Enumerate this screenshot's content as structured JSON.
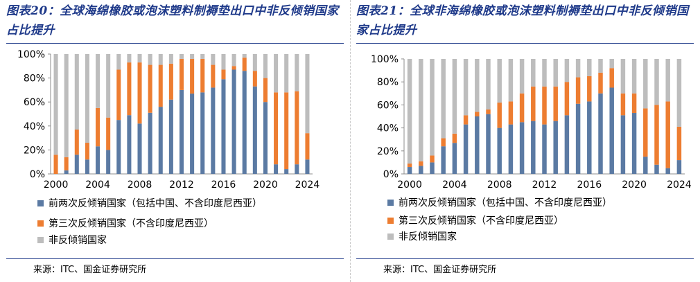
{
  "chart_data": [
    {
      "type": "bar",
      "stacked": true,
      "percent": true,
      "title": "图表20：全球海绵橡胶或泡沫塑料制褥垫出口中非反倾销国家占比提升",
      "source": "来源：ITC、国金证券研究所",
      "ylim": [
        0,
        100
      ],
      "yticks": [
        "0%",
        "20%",
        "40%",
        "60%",
        "80%",
        "100%"
      ],
      "xtick_labels": [
        "2000",
        "2004",
        "2008",
        "2012",
        "2016",
        "2020",
        "2024"
      ],
      "categories": [
        "2000",
        "2001",
        "2002",
        "2003",
        "2004",
        "2005",
        "2006",
        "2007",
        "2008",
        "2009",
        "2010",
        "2011",
        "2012",
        "2013",
        "2014",
        "2015",
        "2016",
        "2017",
        "2018",
        "2019",
        "2020",
        "2021",
        "2022",
        "2023",
        "2024"
      ],
      "legend_position": "bottom",
      "grid": false,
      "series": [
        {
          "name": "前两次反倾销国家（包括中国、不含印度尼西亚）",
          "color": "#5b7aa3",
          "values": [
            0,
            3,
            16,
            12,
            23,
            20,
            45,
            49,
            42,
            51,
            56,
            62,
            70,
            67,
            68,
            72,
            79,
            87,
            86,
            73,
            60,
            8,
            4,
            8,
            12
          ]
        },
        {
          "name": "第三次反倾销国家（不含印度尼西亚）",
          "color": "#ed7d31",
          "values": [
            16,
            11,
            21,
            14,
            32,
            27,
            42,
            44,
            51,
            40,
            35,
            30,
            26,
            29,
            28,
            19,
            8,
            3,
            11,
            13,
            20,
            60,
            64,
            61,
            22
          ]
        },
        {
          "name": "非反倾销国家",
          "color": "#bdbdbd",
          "values": [
            84,
            86,
            63,
            74,
            45,
            53,
            13,
            7,
            7,
            9,
            9,
            8,
            4,
            4,
            4,
            9,
            13,
            10,
            3,
            14,
            20,
            32,
            32,
            31,
            66
          ]
        }
      ]
    },
    {
      "type": "bar",
      "stacked": true,
      "percent": true,
      "title": "图表21：全球非海绵橡胶或泡沫塑料制褥垫出口中非反倾销国家占比提升",
      "source": "来源：ITC、国金证券研究所",
      "ylim": [
        0,
        100
      ],
      "yticks": [
        "0%",
        "20%",
        "40%",
        "60%",
        "80%",
        "100%"
      ],
      "xtick_labels": [
        "2000",
        "2004",
        "2008",
        "2012",
        "2016",
        "2020",
        "2024"
      ],
      "categories": [
        "2000",
        "2001",
        "2002",
        "2003",
        "2004",
        "2005",
        "2006",
        "2007",
        "2008",
        "2009",
        "2010",
        "2011",
        "2012",
        "2013",
        "2014",
        "2015",
        "2016",
        "2017",
        "2018",
        "2019",
        "2020",
        "2021",
        "2022",
        "2023",
        "2024"
      ],
      "legend_position": "bottom",
      "grid": false,
      "series": [
        {
          "name": "前两次反倾销国家（包括中国、不含印度尼西亚）",
          "color": "#5b7aa3",
          "values": [
            6,
            7,
            10,
            24,
            27,
            43,
            50,
            52,
            40,
            43,
            45,
            46,
            43,
            46,
            51,
            61,
            63,
            70,
            75,
            51,
            53,
            15,
            8,
            5,
            12
          ]
        },
        {
          "name": "第三次反倾销国家（不含印度尼西亚）",
          "color": "#ed7d31",
          "values": [
            3,
            4,
            6,
            7,
            8,
            8,
            4,
            4,
            22,
            20,
            25,
            30,
            33,
            30,
            29,
            23,
            22,
            18,
            17,
            19,
            17,
            42,
            52,
            58,
            29
          ]
        },
        {
          "name": "非反倾销国家",
          "color": "#bdbdbd",
          "values": [
            91,
            89,
            84,
            69,
            65,
            49,
            46,
            44,
            38,
            37,
            30,
            24,
            24,
            24,
            20,
            16,
            15,
            12,
            8,
            30,
            30,
            43,
            40,
            37,
            59
          ]
        }
      ]
    }
  ]
}
